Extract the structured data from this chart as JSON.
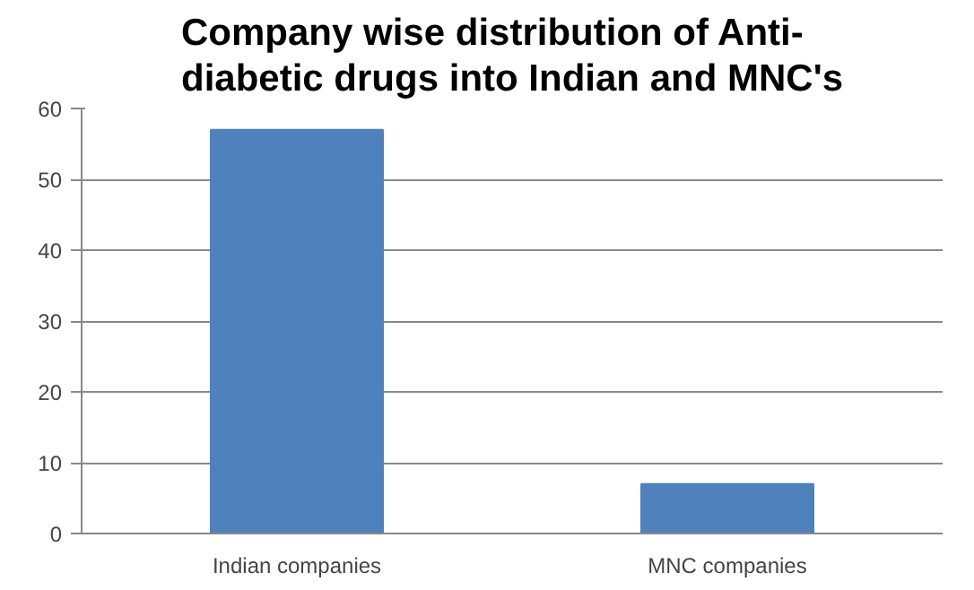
{
  "chart_data": {
    "type": "bar",
    "title": "Company wise distribution of Anti-\ndiabetic drugs into Indian and MNC's",
    "categories": [
      "Indian companies",
      "MNC companies"
    ],
    "values": [
      57,
      7
    ],
    "color": "#4f81bd",
    "ylim": [
      0,
      60
    ],
    "yticks": [
      0,
      10,
      20,
      30,
      40,
      50,
      60
    ],
    "grid": "y"
  }
}
